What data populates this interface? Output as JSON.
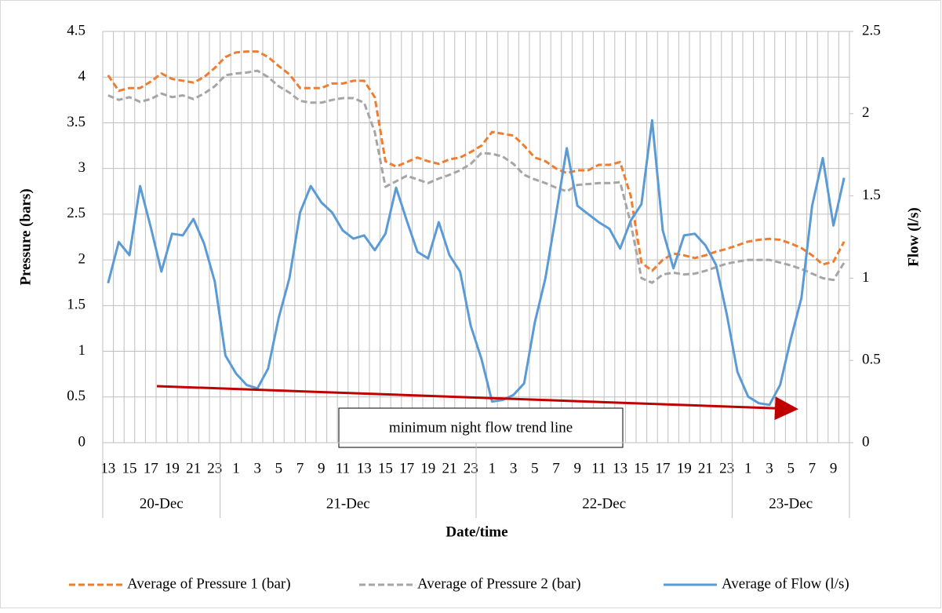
{
  "chart_data": {
    "type": "line",
    "categories": [
      "13",
      null,
      "15",
      null,
      "17",
      null,
      "19",
      null,
      "21",
      null,
      "23",
      null,
      "1",
      null,
      "3",
      null,
      "5",
      null,
      "7",
      null,
      "9",
      null,
      "11",
      null,
      "13",
      null,
      "15",
      null,
      "17",
      null,
      "19",
      null,
      "21",
      null,
      "23",
      null,
      "1",
      null,
      "3",
      null,
      "5",
      null,
      "7",
      null,
      "9",
      null,
      "11",
      null,
      "13",
      null,
      "15",
      null,
      "17",
      null,
      "19",
      null,
      "21",
      null,
      "23",
      null,
      "1",
      null,
      "3",
      null,
      "5",
      null,
      "7",
      null,
      "9",
      null
    ],
    "x_groups": [
      {
        "label": "20-Dec",
        "count": 11
      },
      {
        "label": "21-Dec",
        "count": 24
      },
      {
        "label": "22-Dec",
        "count": 24
      },
      {
        "label": "23-Dec",
        "count": 11
      }
    ],
    "x_label": "Date/time",
    "y_label": "Pressure (bars)",
    "y2_label": "Flow (l/s)",
    "ylim": [
      0,
      4.5
    ],
    "yticks": [
      0,
      0.5,
      1,
      1.5,
      2,
      2.5,
      3,
      3.5,
      4,
      4.5
    ],
    "y2lim": [
      0,
      2.5
    ],
    "y2ticks": [
      0,
      0.5,
      1,
      1.5,
      2,
      2.5
    ],
    "grid": true,
    "legend": "bottom",
    "annotation": "minimum night flow trend line",
    "series": [
      {
        "name": "Average of Pressure 1 (bar)",
        "color": "#ed7d31",
        "style": "dashed",
        "axis": "y",
        "values": [
          4.02,
          3.85,
          3.88,
          3.88,
          3.95,
          4.04,
          3.98,
          3.96,
          3.94,
          4.0,
          4.1,
          4.22,
          4.27,
          4.28,
          4.28,
          4.22,
          4.12,
          4.03,
          3.88,
          3.88,
          3.88,
          3.93,
          3.93,
          3.96,
          3.96,
          3.78,
          3.08,
          3.02,
          3.07,
          3.12,
          3.08,
          3.05,
          3.1,
          3.12,
          3.18,
          3.25,
          3.4,
          3.38,
          3.36,
          3.25,
          3.12,
          3.08,
          3.0,
          2.95,
          2.98,
          2.98,
          3.04,
          3.04,
          3.07,
          2.7,
          1.97,
          1.88,
          2.0,
          2.07,
          2.05,
          2.02,
          2.05,
          2.09,
          2.12,
          2.16,
          2.2,
          2.22,
          2.23,
          2.22,
          2.18,
          2.13,
          2.05,
          1.95,
          1.98,
          2.2
        ]
      },
      {
        "name": "Average of Pressure 2 (bar)",
        "color": "#a5a5a5",
        "style": "dashed",
        "axis": "y",
        "values": [
          3.8,
          3.75,
          3.78,
          3.73,
          3.76,
          3.82,
          3.78,
          3.8,
          3.76,
          3.82,
          3.9,
          4.02,
          4.04,
          4.05,
          4.07,
          4.0,
          3.9,
          3.83,
          3.74,
          3.72,
          3.72,
          3.75,
          3.77,
          3.77,
          3.72,
          3.4,
          2.8,
          2.86,
          2.92,
          2.88,
          2.84,
          2.89,
          2.93,
          2.98,
          3.05,
          3.17,
          3.16,
          3.13,
          3.05,
          2.93,
          2.88,
          2.84,
          2.79,
          2.75,
          2.82,
          2.83,
          2.84,
          2.84,
          2.85,
          2.4,
          1.8,
          1.75,
          1.84,
          1.86,
          1.84,
          1.85,
          1.88,
          1.92,
          1.96,
          1.98,
          2.0,
          2.0,
          2.0,
          1.97,
          1.94,
          1.9,
          1.85,
          1.8,
          1.78,
          1.97
        ]
      },
      {
        "name": "Average of Flow (l/s)",
        "color": "#5b9bd5",
        "style": "solid",
        "axis": "y2",
        "values": [
          0.97,
          1.22,
          1.14,
          1.56,
          1.31,
          1.04,
          1.27,
          1.26,
          1.36,
          1.21,
          0.98,
          0.53,
          0.42,
          0.35,
          0.33,
          0.45,
          0.76,
          1.0,
          1.4,
          1.56,
          1.46,
          1.4,
          1.29,
          1.24,
          1.26,
          1.17,
          1.27,
          1.55,
          1.35,
          1.16,
          1.12,
          1.34,
          1.14,
          1.04,
          0.71,
          0.51,
          0.25,
          0.26,
          0.29,
          0.36,
          0.73,
          1.0,
          1.39,
          1.79,
          1.44,
          1.39,
          1.34,
          1.3,
          1.18,
          1.35,
          1.45,
          1.96,
          1.29,
          1.06,
          1.26,
          1.27,
          1.2,
          1.08,
          0.78,
          0.43,
          0.28,
          0.24,
          0.23,
          0.35,
          0.63,
          0.88,
          1.44,
          1.73,
          1.32,
          1.61
        ]
      }
    ]
  }
}
